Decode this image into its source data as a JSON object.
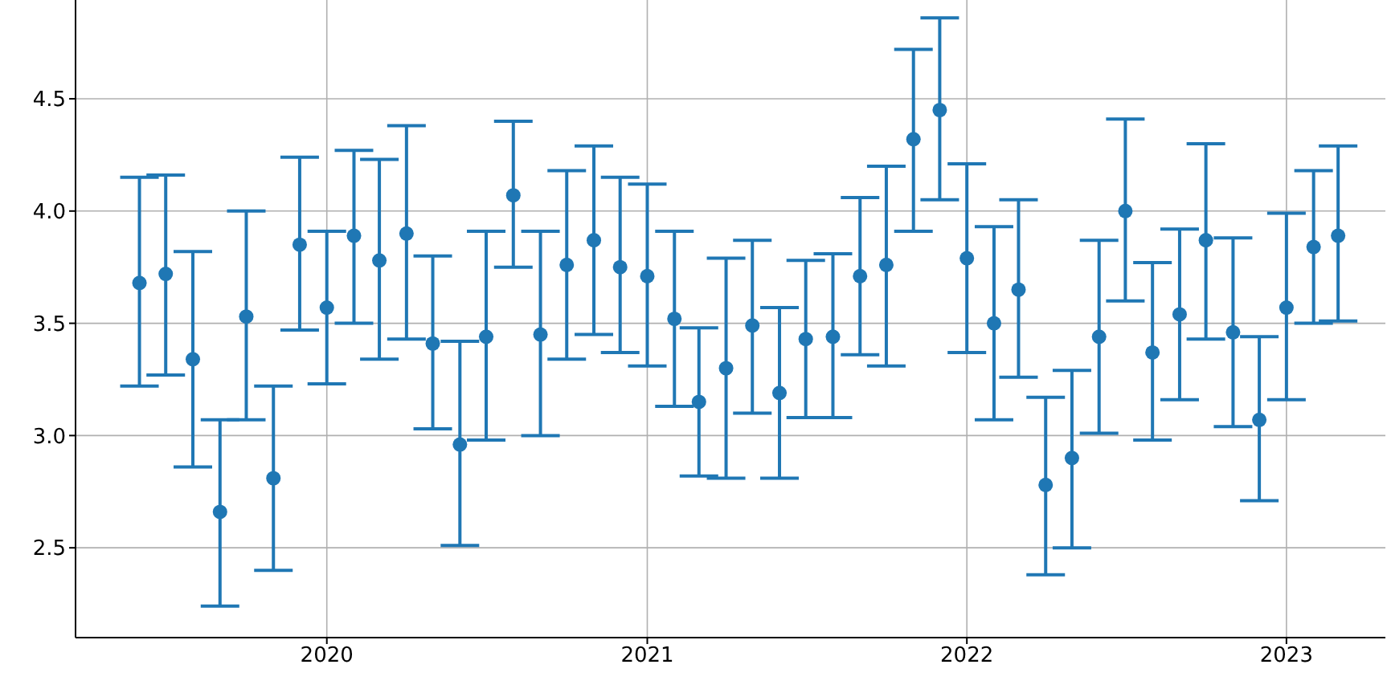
{
  "chart_data": {
    "type": "scatter",
    "x": [
      "2019-06",
      "2019-07",
      "2019-08",
      "2019-09",
      "2019-10",
      "2019-11",
      "2019-12",
      "2020-01",
      "2020-02",
      "2020-03",
      "2020-04",
      "2020-05",
      "2020-06",
      "2020-07",
      "2020-08",
      "2020-09",
      "2020-10",
      "2020-11",
      "2020-12",
      "2021-01",
      "2021-02",
      "2021-03",
      "2021-04",
      "2021-05",
      "2021-06",
      "2021-07",
      "2021-08",
      "2021-09",
      "2021-10",
      "2021-11",
      "2021-12",
      "2022-01",
      "2022-02",
      "2022-03",
      "2022-04",
      "2022-05",
      "2022-06",
      "2022-07",
      "2022-08",
      "2022-09",
      "2022-10",
      "2022-11",
      "2022-12",
      "2023-01",
      "2023-02",
      "2023-03"
    ],
    "series": [
      {
        "color": "#1f77b4",
        "values": [
          3.68,
          3.72,
          3.34,
          2.66,
          3.53,
          2.81,
          3.85,
          3.57,
          3.89,
          3.78,
          3.9,
          3.41,
          2.96,
          3.44,
          4.07,
          3.45,
          3.76,
          3.87,
          3.75,
          3.71,
          3.52,
          3.15,
          3.3,
          3.49,
          3.19,
          3.43,
          3.44,
          3.71,
          3.76,
          4.32,
          4.45,
          3.79,
          3.5,
          3.65,
          2.78,
          2.9,
          3.44,
          4.0,
          3.37,
          3.54,
          3.87,
          3.46,
          3.07,
          3.57,
          3.84,
          3.89
        ],
        "errors": [
          [
            3.22,
            4.15
          ],
          [
            3.27,
            4.16
          ],
          [
            2.86,
            3.82
          ],
          [
            2.24,
            3.07
          ],
          [
            3.07,
            4.0
          ],
          [
            2.4,
            3.22
          ],
          [
            3.47,
            4.24
          ],
          [
            3.23,
            3.91
          ],
          [
            3.5,
            4.27
          ],
          [
            3.34,
            4.23
          ],
          [
            3.43,
            4.38
          ],
          [
            3.03,
            3.8
          ],
          [
            2.51,
            3.42
          ],
          [
            2.98,
            3.91
          ],
          [
            3.75,
            4.4
          ],
          [
            3.0,
            3.91
          ],
          [
            3.34,
            4.18
          ],
          [
            3.45,
            4.29
          ],
          [
            3.37,
            4.15
          ],
          [
            3.31,
            4.12
          ],
          [
            3.13,
            3.91
          ],
          [
            2.82,
            3.48
          ],
          [
            2.81,
            3.79
          ],
          [
            3.1,
            3.87
          ],
          [
            2.81,
            3.57
          ],
          [
            3.08,
            3.78
          ],
          [
            3.08,
            3.81
          ],
          [
            3.36,
            4.06
          ],
          [
            3.31,
            4.2
          ],
          [
            3.91,
            4.72
          ],
          [
            4.05,
            4.86
          ],
          [
            3.37,
            4.21
          ],
          [
            3.07,
            3.93
          ],
          [
            3.26,
            4.05
          ],
          [
            2.38,
            3.17
          ],
          [
            2.5,
            3.29
          ],
          [
            3.01,
            3.87
          ],
          [
            3.6,
            4.41
          ],
          [
            2.98,
            3.77
          ],
          [
            3.16,
            3.92
          ],
          [
            3.43,
            4.3
          ],
          [
            3.04,
            3.88
          ],
          [
            2.71,
            3.44
          ],
          [
            3.16,
            3.99
          ],
          [
            3.5,
            4.18
          ],
          [
            3.51,
            4.29
          ]
        ]
      }
    ],
    "xlim": [
      "2019-03-20",
      "2023-04-24"
    ],
    "xticks": [
      "2020",
      "2021",
      "2022",
      "2023"
    ],
    "ylim": [
      2.1,
      4.94
    ],
    "yticks": [
      2.5,
      {
        "value": 3,
        "label": "3.0"
      },
      3.5,
      {
        "value": 4,
        "label": "4.0"
      },
      4.5
    ],
    "grid": true,
    "marker": "circle"
  }
}
